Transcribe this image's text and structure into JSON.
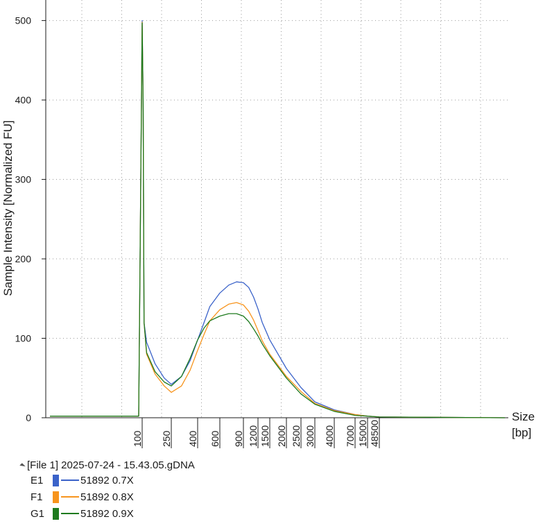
{
  "chart_data": {
    "type": "line",
    "ylabel": "Sample Intensity [Normalized FU]",
    "xlabel_line1": "Size",
    "xlabel_line2": "[bp]",
    "ylim": [
      0,
      520
    ],
    "yticks": [
      0,
      100,
      200,
      300,
      400,
      500
    ],
    "xticks": [
      "100",
      "250",
      "400",
      "600",
      "900",
      "1200",
      "1500",
      "2000",
      "2500",
      "3000",
      "4000",
      "7000",
      "15000",
      "48500"
    ],
    "x_scale": "electrophoresis sizing ladder (non-linear)",
    "grid": "dotted",
    "series": [
      {
        "well": "E1",
        "name": "51892 0.7X",
        "color": "#3a62c9",
        "points": [
          [
            35,
            2
          ],
          [
            70,
            2
          ],
          [
            95,
            2
          ],
          [
            100,
            500
          ],
          [
            103,
            400
          ],
          [
            106,
            120
          ],
          [
            115,
            95
          ],
          [
            150,
            68
          ],
          [
            200,
            50
          ],
          [
            250,
            42
          ],
          [
            300,
            52
          ],
          [
            350,
            72
          ],
          [
            400,
            98
          ],
          [
            450,
            120
          ],
          [
            500,
            140
          ],
          [
            600,
            157
          ],
          [
            700,
            167
          ],
          [
            800,
            171
          ],
          [
            900,
            170
          ],
          [
            1000,
            164
          ],
          [
            1100,
            152
          ],
          [
            1200,
            137
          ],
          [
            1300,
            120
          ],
          [
            1500,
            98
          ],
          [
            2000,
            62
          ],
          [
            2500,
            38
          ],
          [
            3000,
            20
          ],
          [
            4000,
            10
          ],
          [
            7000,
            4
          ],
          [
            15000,
            2
          ],
          [
            48500,
            1
          ],
          [
            100000,
            0
          ]
        ]
      },
      {
        "well": "F1",
        "name": "51892 0.8X",
        "color": "#f7941d",
        "points": [
          [
            35,
            2
          ],
          [
            70,
            2
          ],
          [
            95,
            2
          ],
          [
            100,
            498
          ],
          [
            103,
            400
          ],
          [
            106,
            120
          ],
          [
            115,
            80
          ],
          [
            150,
            55
          ],
          [
            200,
            40
          ],
          [
            250,
            32
          ],
          [
            300,
            40
          ],
          [
            350,
            60
          ],
          [
            400,
            85
          ],
          [
            450,
            105
          ],
          [
            500,
            122
          ],
          [
            600,
            136
          ],
          [
            700,
            143
          ],
          [
            800,
            145
          ],
          [
            900,
            142
          ],
          [
            1000,
            134
          ],
          [
            1100,
            123
          ],
          [
            1200,
            110
          ],
          [
            1300,
            97
          ],
          [
            1500,
            80
          ],
          [
            2000,
            52
          ],
          [
            2500,
            33
          ],
          [
            3000,
            18
          ],
          [
            4000,
            9
          ],
          [
            7000,
            4
          ],
          [
            15000,
            2
          ],
          [
            48500,
            1
          ],
          [
            100000,
            0
          ]
        ]
      },
      {
        "well": "G1",
        "name": "51892 0.9X",
        "color": "#1e7a1e",
        "points": [
          [
            35,
            2
          ],
          [
            70,
            2
          ],
          [
            95,
            2
          ],
          [
            100,
            497
          ],
          [
            103,
            400
          ],
          [
            106,
            120
          ],
          [
            115,
            82
          ],
          [
            150,
            58
          ],
          [
            200,
            45
          ],
          [
            250,
            40
          ],
          [
            300,
            52
          ],
          [
            350,
            75
          ],
          [
            400,
            98
          ],
          [
            450,
            113
          ],
          [
            500,
            122
          ],
          [
            600,
            128
          ],
          [
            700,
            131
          ],
          [
            800,
            131
          ],
          [
            900,
            128
          ],
          [
            1000,
            121
          ],
          [
            1100,
            112
          ],
          [
            1200,
            103
          ],
          [
            1300,
            93
          ],
          [
            1500,
            78
          ],
          [
            2000,
            50
          ],
          [
            2500,
            30
          ],
          [
            3000,
            17
          ],
          [
            4000,
            8
          ],
          [
            7000,
            3
          ],
          [
            15000,
            2
          ],
          [
            48500,
            1
          ],
          [
            100000,
            0
          ]
        ]
      }
    ]
  },
  "legend": {
    "file_label": "[File 1] 2025-07-24 - 15.43.05.gDNA",
    "items": [
      {
        "well": "E1",
        "label": "51892 0.7X",
        "color": "#3a62c9"
      },
      {
        "well": "F1",
        "label": "51892 0.8X",
        "color": "#f7941d"
      },
      {
        "well": "G1",
        "label": "51892 0.9X",
        "color": "#1e7a1e"
      }
    ]
  }
}
